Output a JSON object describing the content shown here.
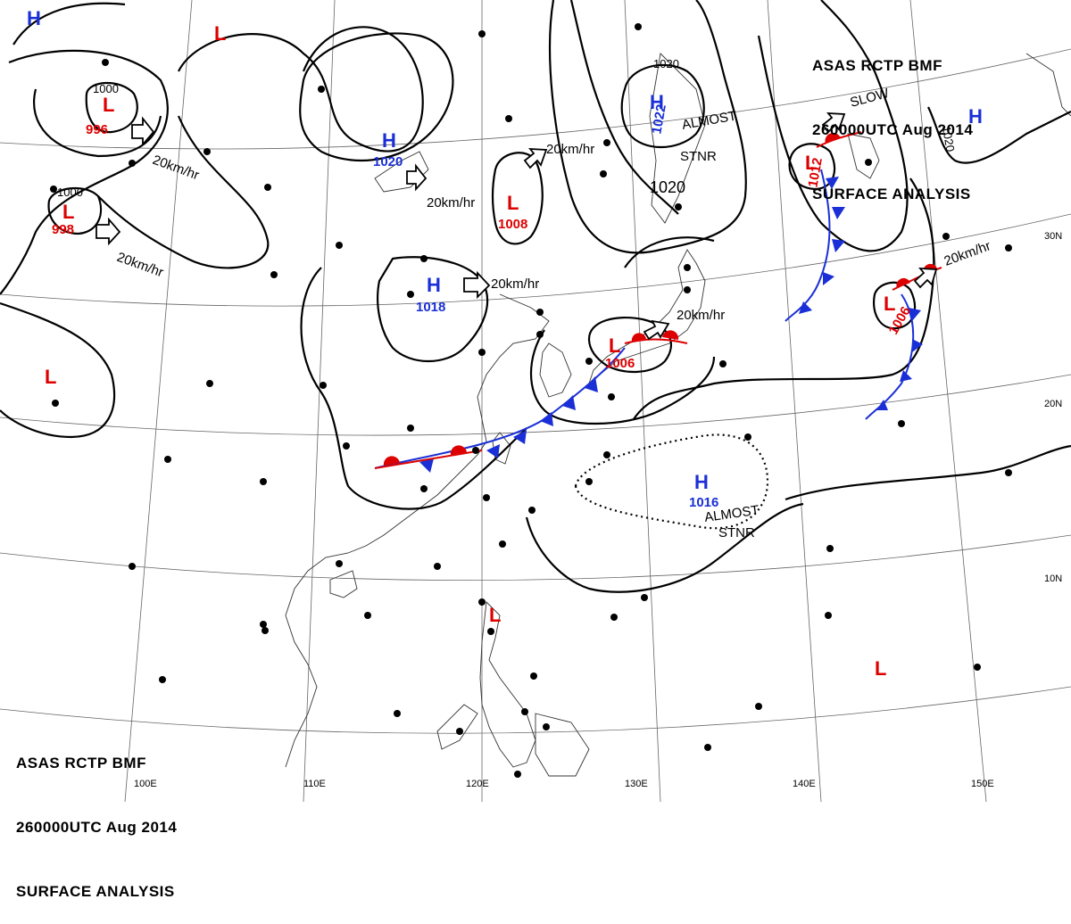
{
  "header": {
    "line1": "ASAS      RCTP      BMF",
    "line2": "260000UTC      Aug      2014",
    "line3": "SURFACE  ANALYSIS"
  },
  "footer": {
    "line1": "ASAS      RCTP      BMF",
    "line2": "260000UTC      Aug      2014",
    "line3": "SURFACE  ANALYSIS"
  },
  "lon_labels": [
    "100E",
    "110E",
    "120E",
    "130E",
    "140E",
    "150E"
  ],
  "lat_labels": [
    "30N",
    "20N",
    "10N"
  ],
  "pressure_systems": [
    {
      "type": "H",
      "value": ""
    },
    {
      "type": "L",
      "value": ""
    },
    {
      "type": "L",
      "value": "996"
    },
    {
      "type": "L",
      "value": "998"
    },
    {
      "type": "H",
      "value": "1020"
    },
    {
      "type": "L",
      "value": "1008"
    },
    {
      "type": "H",
      "value": "1022"
    },
    {
      "type": "L",
      "value": "1012"
    },
    {
      "type": "H",
      "value": ""
    },
    {
      "type": "H",
      "value": "1018"
    },
    {
      "type": "L",
      "value": "1006"
    },
    {
      "type": "L",
      "value": "1006"
    },
    {
      "type": "L",
      "value": ""
    },
    {
      "type": "H",
      "value": "1016"
    },
    {
      "type": "L",
      "value": ""
    },
    {
      "type": "L",
      "value": ""
    }
  ],
  "isobar_labels": [
    "1000",
    "1000",
    "1020",
    "1020",
    "1020"
  ],
  "movement_labels": [
    "20km/hr",
    "20km/hr",
    "20km/hr",
    "20km/hr",
    "20km/hr",
    "20km/hr",
    "20km/hr"
  ],
  "annotations": [
    "ALMOST",
    "STNR",
    "ALMOST",
    "STNR",
    "SLOW"
  ],
  "colors": {
    "low": "#dd0000",
    "high": "#1a2fd6",
    "cold_front": "#1a2fd6",
    "warm_front": "#dd0000",
    "isobar": "#000000",
    "coast": "#222222",
    "grid": "#555555"
  }
}
